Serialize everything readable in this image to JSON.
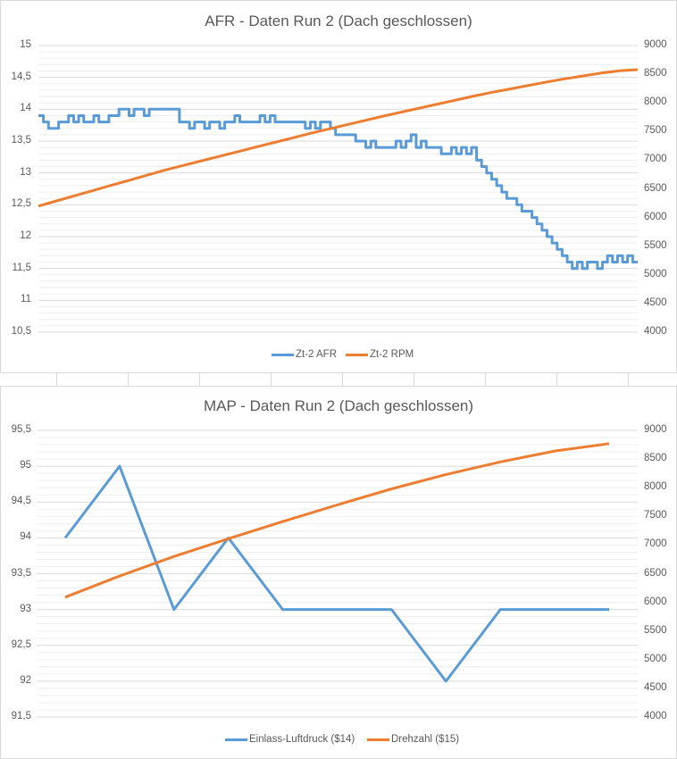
{
  "chart_data": [
    {
      "type": "line",
      "title": "AFR - Daten Run 2 (Dach geschlossen)",
      "xlabel": "",
      "ylabel": "",
      "y_ticks": [
        "15",
        "14,5",
        "14",
        "13,5",
        "13",
        "12,5",
        "12",
        "11,5",
        "11",
        "10,5"
      ],
      "y_range": [
        10.5,
        15
      ],
      "y2_ticks": [
        "9000",
        "8500",
        "8000",
        "7500",
        "7000",
        "6500",
        "6000",
        "5500",
        "5000",
        "4500",
        "4000"
      ],
      "y2_range": [
        4000,
        9000
      ],
      "grid": true,
      "legend_position": "bottom",
      "series": [
        {
          "name": "Zt-2 AFR",
          "axis": "left",
          "color": "#5b9bd5",
          "values": [
            13.9,
            13.8,
            13.7,
            13.7,
            13.8,
            13.8,
            13.9,
            13.8,
            13.9,
            13.8,
            13.8,
            13.9,
            13.8,
            13.8,
            13.9,
            13.9,
            14.0,
            14.0,
            13.9,
            14.0,
            14.0,
            13.9,
            14.0,
            14.0,
            14.0,
            14.0,
            14.0,
            14.0,
            13.8,
            13.8,
            13.7,
            13.8,
            13.8,
            13.7,
            13.8,
            13.8,
            13.7,
            13.8,
            13.8,
            13.9,
            13.8,
            13.8,
            13.8,
            13.8,
            13.9,
            13.8,
            13.9,
            13.8,
            13.8,
            13.8,
            13.8,
            13.8,
            13.8,
            13.7,
            13.8,
            13.7,
            13.8,
            13.8,
            13.7,
            13.6,
            13.6,
            13.6,
            13.6,
            13.5,
            13.5,
            13.4,
            13.5,
            13.4,
            13.4,
            13.4,
            13.4,
            13.5,
            13.4,
            13.5,
            13.6,
            13.4,
            13.5,
            13.4,
            13.4,
            13.4,
            13.3,
            13.3,
            13.4,
            13.3,
            13.4,
            13.3,
            13.4,
            13.2,
            13.1,
            13.0,
            12.9,
            12.8,
            12.7,
            12.6,
            12.6,
            12.5,
            12.4,
            12.4,
            12.3,
            12.2,
            12.1,
            12.0,
            11.9,
            11.8,
            11.7,
            11.6,
            11.5,
            11.6,
            11.5,
            11.6,
            11.6,
            11.5,
            11.6,
            11.7,
            11.6,
            11.7,
            11.6,
            11.7,
            11.6,
            11.6
          ]
        },
        {
          "name": "Zt-2 RPM",
          "axis": "right",
          "color": "#ed7d31",
          "values": [
            6200,
            6290,
            6380,
            6470,
            6560,
            6650,
            6740,
            6830,
            6910,
            6990,
            7070,
            7150,
            7230,
            7310,
            7390,
            7470,
            7545,
            7620,
            7695,
            7770,
            7840,
            7910,
            7980,
            8050,
            8120,
            8185,
            8245,
            8305,
            8365,
            8420,
            8470,
            8520,
            8560,
            8580
          ]
        }
      ]
    },
    {
      "type": "line",
      "title": "MAP - Daten Run 2 (Dach geschlossen)",
      "xlabel": "",
      "ylabel": "",
      "y_ticks": [
        "95,5",
        "95",
        "94,5",
        "94",
        "93,5",
        "93",
        "92,5",
        "92",
        "91,5"
      ],
      "y_range": [
        91.5,
        95.5
      ],
      "y2_ticks": [
        "9000",
        "8500",
        "8000",
        "7500",
        "7000",
        "6500",
        "6000",
        "5500",
        "5000",
        "4500",
        "4000"
      ],
      "y2_range": [
        4000,
        9000
      ],
      "grid": true,
      "legend_position": "bottom",
      "series": [
        {
          "name": "Einlass-Luftdruck ($14)",
          "axis": "left",
          "color": "#5b9bd5",
          "values": [
            94,
            95,
            93,
            94,
            93,
            93,
            93,
            92,
            93,
            93,
            93
          ]
        },
        {
          "name": "Drehzahl ($15)",
          "axis": "right",
          "color": "#ed7d31",
          "values": [
            6090,
            6460,
            6800,
            7110,
            7410,
            7700,
            7980,
            8230,
            8450,
            8640,
            8770
          ]
        }
      ]
    }
  ]
}
